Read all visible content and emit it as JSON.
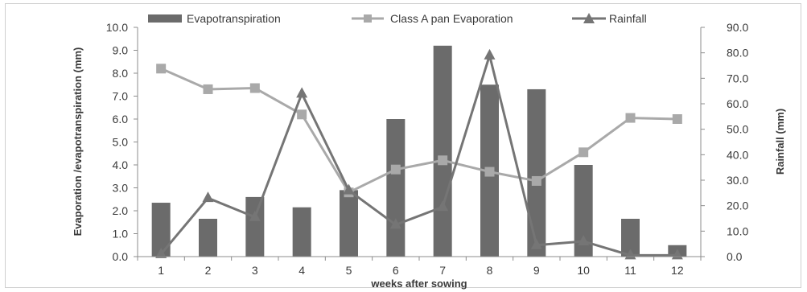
{
  "chart_data": {
    "type": "bar",
    "categories": [
      "1",
      "2",
      "3",
      "4",
      "5",
      "6",
      "7",
      "8",
      "9",
      "10",
      "11",
      "12"
    ],
    "series": [
      {
        "name": "Evapotranspiration",
        "type": "bar",
        "axis": "left",
        "color": "#6b6b6b",
        "values": [
          2.35,
          1.65,
          2.6,
          2.15,
          2.9,
          6.0,
          9.2,
          7.5,
          7.3,
          4.0,
          1.65,
          0.5
        ]
      },
      {
        "name": "Class A pan Evaporation",
        "type": "line",
        "marker": "square",
        "axis": "left",
        "color": "#a9a9a9",
        "values": [
          8.2,
          7.3,
          7.35,
          6.2,
          2.8,
          3.8,
          4.2,
          3.7,
          3.3,
          4.55,
          6.05,
          6.0
        ]
      },
      {
        "name": "Rainfall",
        "type": "line",
        "marker": "triangle",
        "axis": "right",
        "color": "#757575",
        "values": [
          1.0,
          23.0,
          15.5,
          64.0,
          26.0,
          12.5,
          19.5,
          79.0,
          4.5,
          6.0,
          0.5,
          0.5
        ]
      }
    ],
    "xlabel": "weeks after sowing",
    "ylabel": "Evaporation /evapotranspiration (mm)",
    "y2label": "Rainfall (mm)",
    "ylim": [
      0,
      10
    ],
    "y2lim": [
      0,
      90
    ],
    "yticks": [
      "0.0",
      "1.0",
      "2.0",
      "3.0",
      "4.0",
      "5.0",
      "6.0",
      "7.0",
      "8.0",
      "9.0",
      "10.0"
    ],
    "y2ticks": [
      "0.0",
      "10.0",
      "20.0",
      "30.0",
      "40.0",
      "50.0",
      "60.0",
      "70.0",
      "80.0",
      "90.0"
    ],
    "grid": false,
    "legend": "top"
  }
}
